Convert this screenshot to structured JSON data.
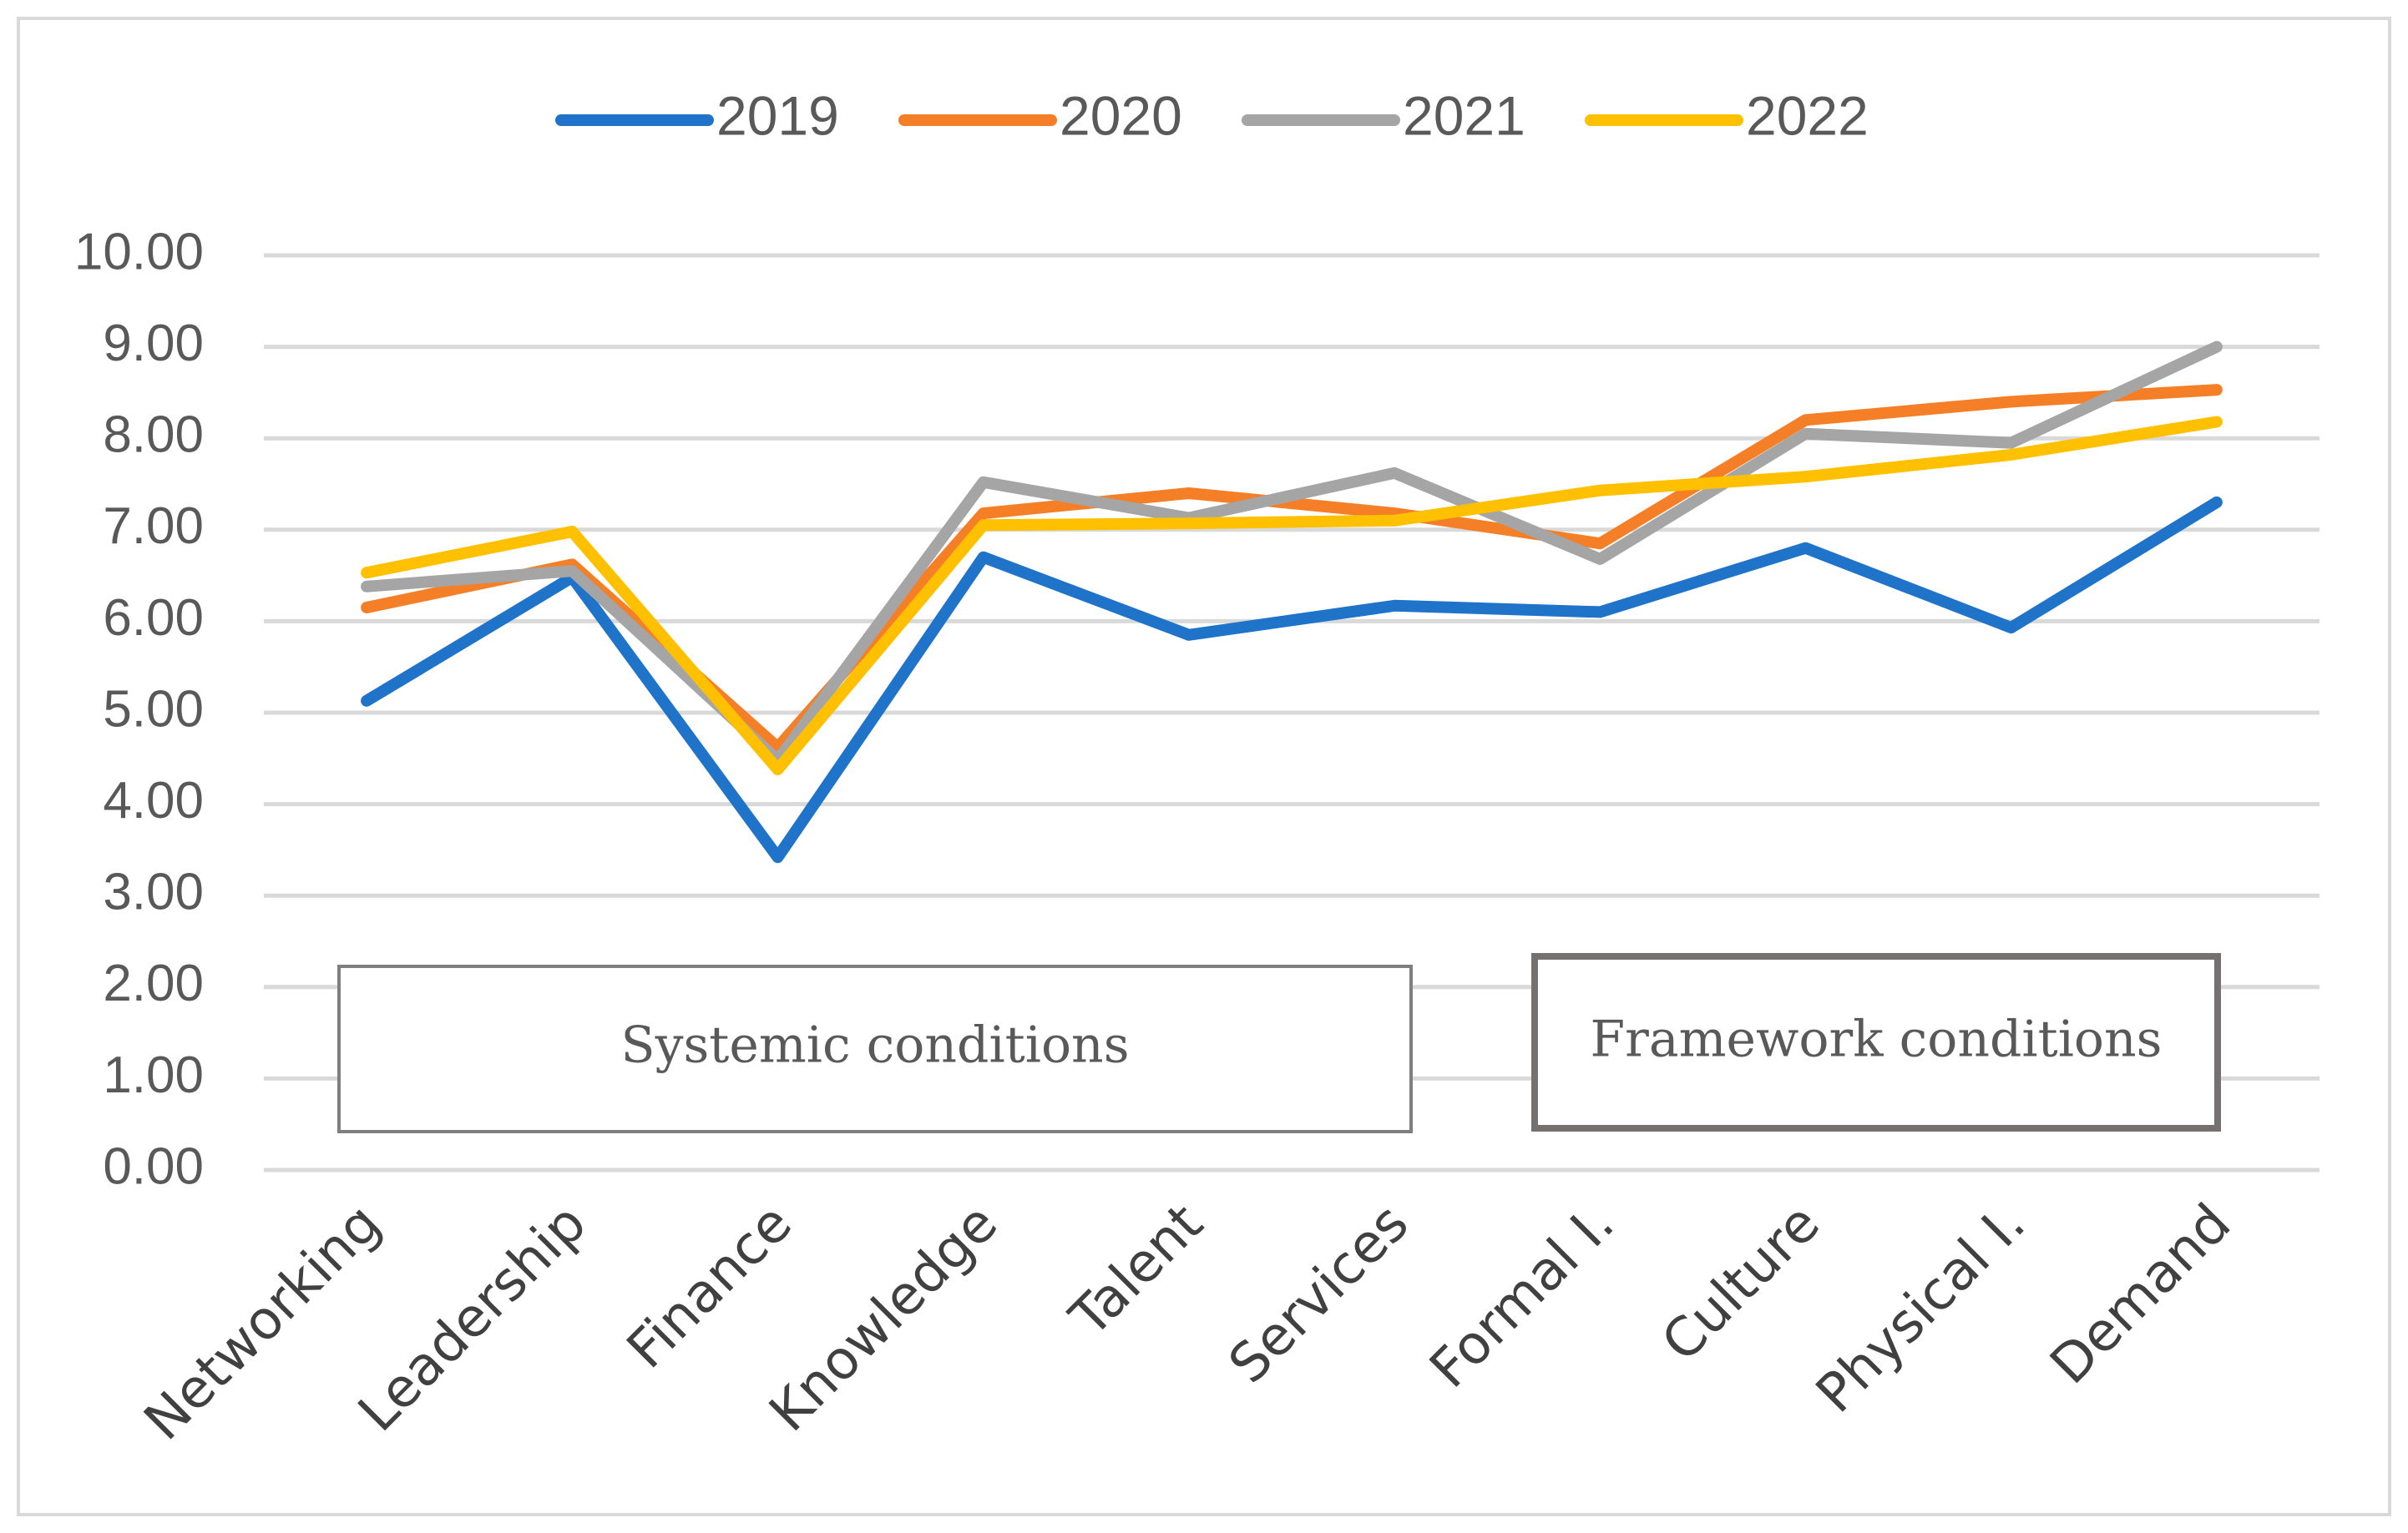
{
  "chart_data": {
    "type": "line",
    "title": "",
    "xlabel": "",
    "ylabel": "",
    "ylim": [
      0,
      10
    ],
    "yticks": [
      "0.00",
      "1.00",
      "2.00",
      "3.00",
      "4.00",
      "5.00",
      "6.00",
      "7.00",
      "8.00",
      "9.00",
      "10.00"
    ],
    "grid": true,
    "legend_position": "top-center",
    "categories": [
      "Networking",
      "Leadership",
      "Finance",
      "Knowledge",
      "Talent",
      "Services",
      "Formal I.",
      "Culture",
      "Physical I.",
      "Demand"
    ],
    "series": [
      {
        "name": "2019",
        "color": "#1f73c8",
        "values": [
          5.13,
          6.48,
          3.42,
          6.7,
          5.85,
          6.17,
          6.1,
          6.8,
          5.93,
          7.3
        ]
      },
      {
        "name": "2020",
        "color": "#f57f27",
        "values": [
          6.15,
          6.62,
          4.62,
          7.18,
          7.4,
          7.18,
          6.85,
          8.2,
          8.4,
          8.53
        ]
      },
      {
        "name": "2021",
        "color": "#a5a5a5",
        "values": [
          6.38,
          6.55,
          4.48,
          7.52,
          7.13,
          7.62,
          6.68,
          8.05,
          7.95,
          9.0
        ]
      },
      {
        "name": "2022",
        "color": "#ffc000",
        "values": [
          6.53,
          6.98,
          4.38,
          7.05,
          7.07,
          7.1,
          7.43,
          7.58,
          7.82,
          8.18
        ]
      }
    ],
    "annotations": [
      "Systemic conditions",
      "Framework conditions"
    ]
  }
}
